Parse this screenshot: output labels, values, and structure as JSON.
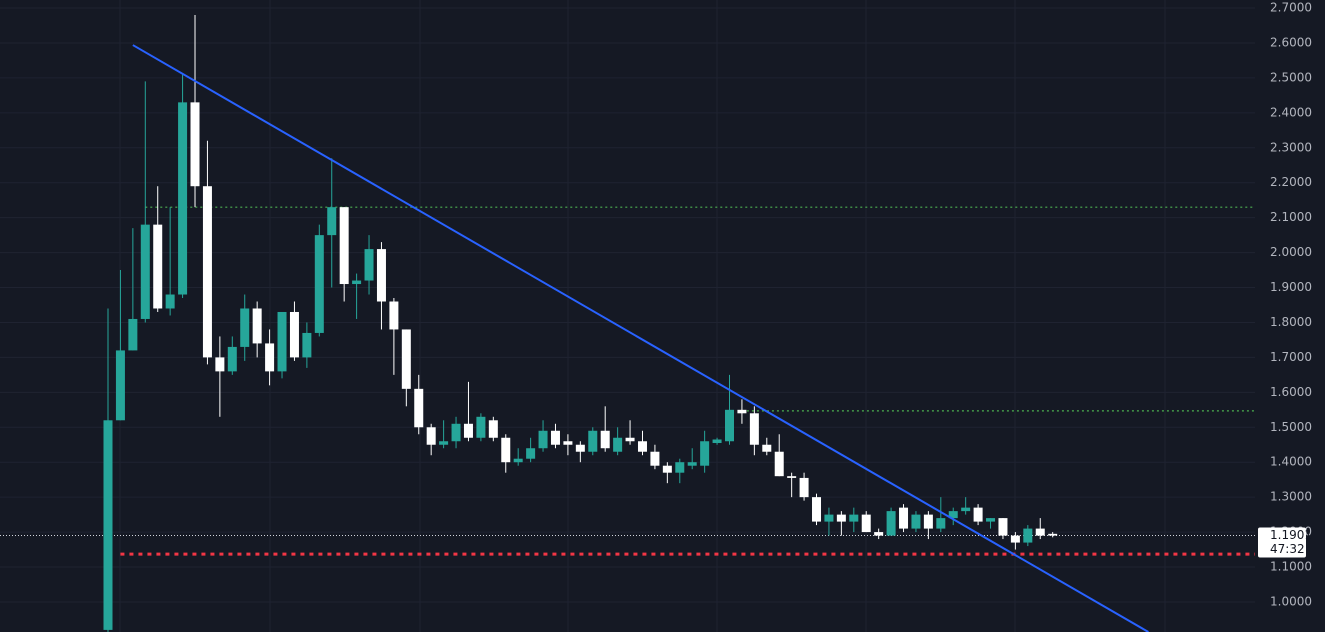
{
  "chart_data": {
    "type": "candlestick",
    "ylim": [
      0.914,
      2.723
    ],
    "yticks": [
      {
        "value": 1.0,
        "label": "1.0000"
      },
      {
        "value": 1.1,
        "label": "1.1000"
      },
      {
        "value": 1.2,
        "label": "1.2000"
      },
      {
        "value": 1.3,
        "label": "1.3000"
      },
      {
        "value": 1.4,
        "label": "1.4000"
      },
      {
        "value": 1.5,
        "label": "1.5000"
      },
      {
        "value": 1.6,
        "label": "1.6000"
      },
      {
        "value": 1.7,
        "label": "1.7000"
      },
      {
        "value": 1.8,
        "label": "1.8000"
      },
      {
        "value": 1.9,
        "label": "1.9000"
      },
      {
        "value": 2.0,
        "label": "2.0000"
      },
      {
        "value": 2.1,
        "label": "2.1000"
      },
      {
        "value": 2.2,
        "label": "2.2000"
      },
      {
        "value": 2.3,
        "label": "2.3000"
      },
      {
        "value": 2.4,
        "label": "2.4000"
      },
      {
        "value": 2.5,
        "label": "2.5000"
      },
      {
        "value": 2.6,
        "label": "2.6000"
      },
      {
        "value": 2.7,
        "label": "2.7000"
      }
    ],
    "grid": true,
    "up_color": "#26a69a",
    "down_color": "#ffffff",
    "open": [
      0.92,
      1.52,
      1.72,
      1.81,
      2.08,
      1.84,
      1.88,
      2.43,
      2.19,
      1.7,
      1.66,
      1.73,
      1.84,
      1.74,
      1.66,
      1.83,
      1.7,
      1.77,
      2.05,
      2.13,
      1.91,
      1.92,
      2.01,
      1.86,
      1.78,
      1.61,
      1.5,
      1.45,
      1.46,
      1.51,
      1.47,
      1.52,
      1.47,
      1.4,
      1.41,
      1.44,
      1.49,
      1.46,
      1.45,
      1.43,
      1.49,
      1.43,
      1.47,
      1.46,
      1.43,
      1.39,
      1.37,
      1.39,
      1.39,
      1.455,
      1.46,
      1.55,
      1.54,
      1.45,
      1.43,
      1.36,
      1.355,
      1.3,
      1.23,
      1.25,
      1.23,
      1.25,
      1.2,
      1.19,
      1.27,
      1.21,
      1.25,
      1.21,
      1.24,
      1.26,
      1.27,
      1.23,
      1.24,
      1.19,
      1.17,
      1.21,
      1.195
    ],
    "high": [
      1.84,
      1.95,
      2.07,
      2.49,
      2.19,
      2.13,
      2.51,
      2.68,
      2.32,
      1.76,
      1.76,
      1.88,
      1.86,
      1.78,
      1.83,
      1.86,
      1.8,
      2.08,
      2.27,
      2.13,
      1.94,
      2.05,
      2.03,
      1.87,
      1.78,
      1.65,
      1.51,
      1.52,
      1.53,
      1.63,
      1.54,
      1.53,
      1.48,
      1.44,
      1.47,
      1.52,
      1.51,
      1.48,
      1.46,
      1.5,
      1.56,
      1.5,
      1.52,
      1.49,
      1.45,
      1.4,
      1.41,
      1.44,
      1.49,
      1.47,
      1.65,
      1.58,
      1.56,
      1.47,
      1.48,
      1.37,
      1.37,
      1.31,
      1.27,
      1.26,
      1.27,
      1.26,
      1.21,
      1.27,
      1.28,
      1.26,
      1.26,
      1.3,
      1.27,
      1.3,
      1.28,
      1.24,
      1.24,
      1.2,
      1.22,
      1.24,
      1.2
    ],
    "low": [
      0.9,
      1.52,
      1.72,
      1.8,
      1.83,
      1.82,
      1.87,
      2.13,
      1.68,
      1.53,
      1.65,
      1.69,
      1.7,
      1.62,
      1.64,
      1.69,
      1.67,
      1.76,
      1.9,
      1.86,
      1.81,
      1.88,
      1.78,
      1.65,
      1.56,
      1.48,
      1.42,
      1.44,
      1.44,
      1.46,
      1.46,
      1.46,
      1.37,
      1.39,
      1.4,
      1.43,
      1.44,
      1.42,
      1.4,
      1.42,
      1.43,
      1.42,
      1.45,
      1.42,
      1.38,
      1.34,
      1.34,
      1.38,
      1.37,
      1.45,
      1.45,
      1.51,
      1.42,
      1.42,
      1.36,
      1.3,
      1.29,
      1.22,
      1.19,
      1.19,
      1.2,
      1.2,
      1.18,
      1.19,
      1.2,
      1.2,
      1.18,
      1.2,
      1.22,
      1.25,
      1.22,
      1.21,
      1.18,
      1.15,
      1.16,
      1.18,
      1.185
    ],
    "close": [
      1.52,
      1.72,
      1.81,
      2.08,
      1.84,
      1.88,
      2.43,
      2.19,
      1.7,
      1.66,
      1.73,
      1.84,
      1.74,
      1.66,
      1.83,
      1.7,
      1.77,
      2.05,
      2.13,
      1.91,
      1.92,
      2.01,
      1.86,
      1.78,
      1.61,
      1.5,
      1.45,
      1.46,
      1.51,
      1.47,
      1.53,
      1.47,
      1.4,
      1.41,
      1.44,
      1.49,
      1.45,
      1.45,
      1.43,
      1.49,
      1.44,
      1.47,
      1.46,
      1.43,
      1.39,
      1.37,
      1.4,
      1.4,
      1.46,
      1.465,
      1.55,
      1.54,
      1.45,
      1.43,
      1.36,
      1.355,
      1.3,
      1.23,
      1.25,
      1.23,
      1.25,
      1.2,
      1.19,
      1.26,
      1.21,
      1.25,
      1.21,
      1.24,
      1.26,
      1.27,
      1.23,
      1.24,
      1.19,
      1.17,
      1.21,
      1.19,
      1.1901
    ],
    "trendline": {
      "color": "#2962ff",
      "x": [
        2,
        83.7
      ],
      "values": [
        2.594,
        0.914
      ]
    },
    "levels": [
      {
        "value": 2.13,
        "start": 3,
        "color": "#4caf50"
      },
      {
        "value": 1.547,
        "start": 51,
        "color": "#4caf50"
      },
      {
        "value": 1.137,
        "start": 1,
        "color": "#f23645"
      }
    ],
    "last_price": {
      "value": 1.1901,
      "countdown": "47:32"
    }
  }
}
